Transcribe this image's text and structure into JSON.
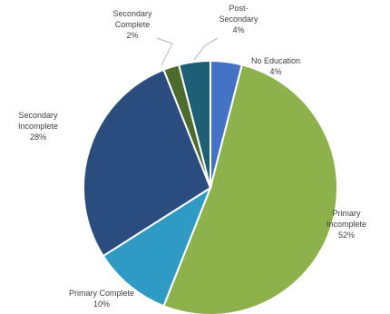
{
  "chart_data": {
    "type": "pie",
    "title": "",
    "slices": [
      {
        "label_lines": [
          "No Education",
          "4%"
        ],
        "value": 4,
        "color": "#4472C4"
      },
      {
        "label_lines": [
          "Primary",
          "Incomplete",
          "52%"
        ],
        "value": 52,
        "color": "#8DB14B"
      },
      {
        "label_lines": [
          "Primary Complete",
          "10%"
        ],
        "value": 10,
        "color": "#2F9BC4"
      },
      {
        "label_lines": [
          "Secondary",
          "Incomplete",
          "28%"
        ],
        "value": 28,
        "color": "#2B4C7E"
      },
      {
        "label_lines": [
          "Secondary",
          "Complete",
          "2%"
        ],
        "value": 2,
        "color": "#4D6B2C"
      },
      {
        "label_lines": [
          "Post-",
          "Secondary",
          "4%"
        ],
        "value": 4,
        "color": "#1F5F75"
      }
    ],
    "start_angle_deg": 0,
    "direction": "clockwise",
    "legend": "none",
    "data_labels": "outside"
  }
}
